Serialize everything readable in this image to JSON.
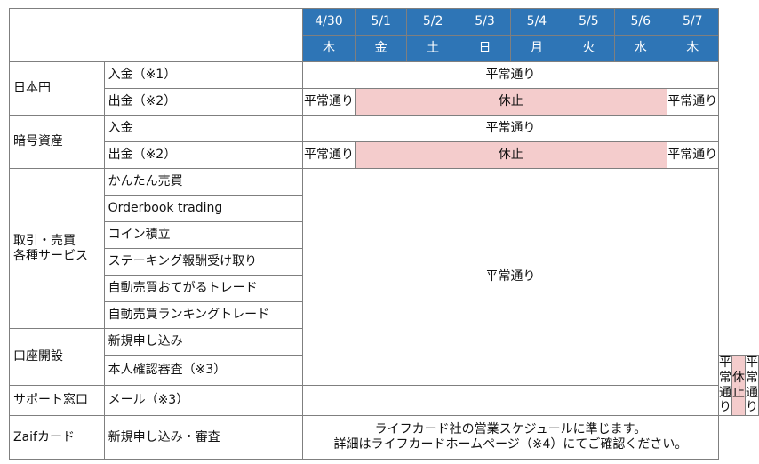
{
  "dates": [
    "4/30",
    "5/1",
    "5/2",
    "5/3",
    "5/4",
    "5/5",
    "5/6",
    "5/7"
  ],
  "weekdays": [
    "木",
    "金",
    "土",
    "日",
    "月",
    "火",
    "水",
    "木"
  ],
  "status": {
    "normal": "平常通り",
    "halt": "休止"
  },
  "categories": {
    "jpy": {
      "label": "日本円",
      "deposit": "入金（※1）",
      "withdraw": "出金（※2）"
    },
    "crypto": {
      "label": "暗号資産",
      "deposit": "入金",
      "withdraw": "出金（※2）"
    },
    "trading": {
      "label_line1": "取引・売買",
      "label_line2": "各種サービス",
      "items": [
        "かんたん売買",
        "Orderbook trading",
        "コイン積立",
        "ステーキング報酬受け取り",
        "自動売買おてがるトレード",
        "自動売買ランキングトレード"
      ]
    },
    "account": {
      "label": "口座開設",
      "items": [
        "新規申し込み",
        "本人確認審査（※3）"
      ]
    },
    "support": {
      "label": "サポート窓口",
      "item": "メール（※3）"
    },
    "zaif_card": {
      "label": "Zaifカード",
      "item": "新規申し込み・審査",
      "note_line1": "ライフカード社の営業スケジュールに準じます。",
      "note_line2": "詳細はライフカードホームページ（※4）にてご確認ください。"
    }
  },
  "colors": {
    "header_bg": "#2e75b6",
    "header_text": "#ffffff",
    "halt_bg": "#f4cccc",
    "border": "#7f7f7f"
  }
}
